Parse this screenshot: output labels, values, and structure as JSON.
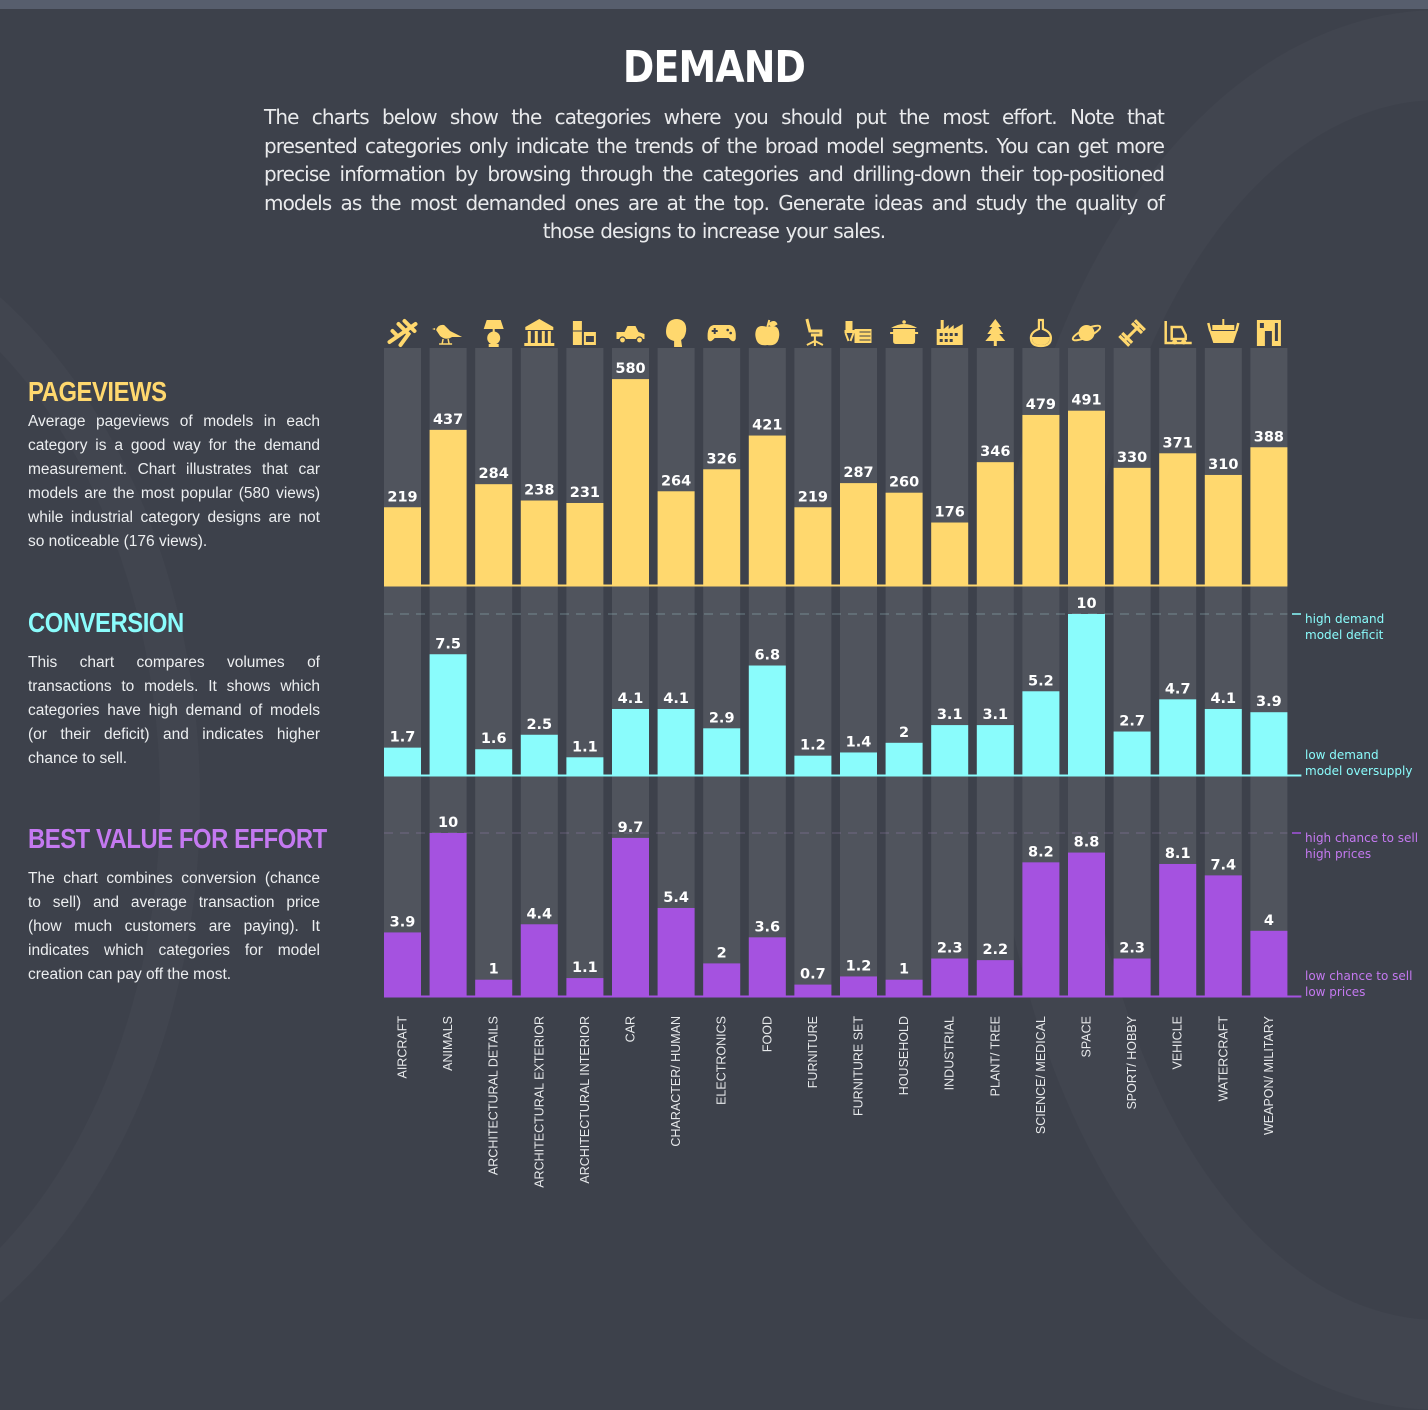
{
  "header": {
    "title": "DEMAND",
    "intro": "The charts below show the categories where you should put the most effort. Note that presented categories only indicate the trends of the broad model segments. You can get more precise information by browsing through the categories and drilling-down their top-positioned models as the most demanded ones are at the top. Generate ideas and study the quality of those designs to increase your sales."
  },
  "sections": {
    "pageviews": {
      "title": "PAGEVIEWS",
      "text": "Average pageviews of models in each category is a good way for the demand measurement. Chart illustrates that car models are the most popular (580 views) while industrial category designs are not so noticeable (176 views)."
    },
    "conversion": {
      "title": "CONVERSION",
      "text": "This chart compares volumes of transactions to models. It shows which categories have high demand of models (or their deficit) and indicates higher chance to sell."
    },
    "value": {
      "title": "BEST VALUE FOR EFFORT",
      "text": "The chart combines conversion (chance to sell) and average transaction price (how much customers are paying). It indicates which categories for model creation can pay off the most."
    }
  },
  "colors": {
    "background": "#3d414b",
    "column": "#50545d",
    "pageviews": "#ffd86e",
    "conversion": "#8afcfc",
    "value": "#a552e0",
    "value_text": "#c479f0"
  },
  "chart_data": [
    {
      "type": "bar",
      "title": "PAGEVIEWS",
      "categories": [
        "AIRCRAFT",
        "ANIMALS",
        "ARCHITECTURAL DETAILS",
        "ARCHITECTURAL EXTERIOR",
        "ARCHITECTURAL INTERIOR",
        "CAR",
        "CHARACTER/ HUMAN",
        "ELECTRONICS",
        "FOOD",
        "FURNITURE",
        "FURNITURE SET",
        "HOUSEHOLD",
        "INDUSTRIAL",
        "PLANT/ TREE",
        "SCIENCE/ MEDICAL",
        "SPACE",
        "SPORT/ HOBBY",
        "VEHICLE",
        "WATERCRAFT",
        "WEAPON/ MILITARY"
      ],
      "values": [
        219,
        437,
        284,
        238,
        231,
        580,
        264,
        326,
        421,
        219,
        287,
        260,
        176,
        346,
        479,
        491,
        330,
        371,
        310,
        388
      ],
      "labels": [
        "219",
        "437",
        "284",
        "238",
        "231",
        "580",
        "264",
        "326",
        "421",
        "219",
        "287",
        "260",
        "176",
        "346",
        "479",
        "491",
        "330",
        "371",
        "310",
        "388"
      ],
      "ylim": [
        0,
        600
      ],
      "xlabel": "",
      "ylabel": "",
      "grid": false
    },
    {
      "type": "bar",
      "title": "CONVERSION",
      "categories": [
        "AIRCRAFT",
        "ANIMALS",
        "ARCHITECTURAL DETAILS",
        "ARCHITECTURAL EXTERIOR",
        "ARCHITECTURAL INTERIOR",
        "CAR",
        "CHARACTER/ HUMAN",
        "ELECTRONICS",
        "FOOD",
        "FURNITURE",
        "FURNITURE SET",
        "HOUSEHOLD",
        "INDUSTRIAL",
        "PLANT/ TREE",
        "SCIENCE/ MEDICAL",
        "SPACE",
        "SPORT/ HOBBY",
        "VEHICLE",
        "WATERCRAFT",
        "WEAPON/ MILITARY"
      ],
      "values": [
        1.7,
        7.5,
        1.6,
        2.5,
        1.1,
        4.1,
        4.1,
        2.9,
        6.8,
        1.2,
        1.4,
        2,
        3.1,
        3.1,
        5.2,
        10,
        2.7,
        4.7,
        4.1,
        3.9
      ],
      "labels": [
        "1.7",
        "7.5",
        "1.6",
        "2.5",
        "1.1",
        "4.1",
        "4.1",
        "2.9",
        "6.8",
        "1.2",
        "1.4",
        "2",
        "3.1",
        "3.1",
        "5.2",
        "10",
        "2.7",
        "4.7",
        "4.1",
        "3.9"
      ],
      "ylim": [
        0,
        10
      ],
      "reference_line": 10,
      "annotations": {
        "top": [
          "high demand",
          "model deficit"
        ],
        "bottom": [
          "low demand",
          "model oversupply"
        ]
      },
      "xlabel": "",
      "ylabel": "",
      "grid": false
    },
    {
      "type": "bar",
      "title": "BEST VALUE FOR EFFORT",
      "categories": [
        "AIRCRAFT",
        "ANIMALS",
        "ARCHITECTURAL DETAILS",
        "ARCHITECTURAL EXTERIOR",
        "ARCHITECTURAL INTERIOR",
        "CAR",
        "CHARACTER/ HUMAN",
        "ELECTRONICS",
        "FOOD",
        "FURNITURE",
        "FURNITURE SET",
        "HOUSEHOLD",
        "INDUSTRIAL",
        "PLANT/ TREE",
        "SCIENCE/ MEDICAL",
        "SPACE",
        "SPORT/ HOBBY",
        "VEHICLE",
        "WATERCRAFT",
        "WEAPON/ MILITARY"
      ],
      "values": [
        3.9,
        10,
        1,
        4.4,
        1.1,
        9.7,
        5.4,
        2,
        3.6,
        0.7,
        1.2,
        1,
        2.3,
        2.2,
        8.2,
        8.8,
        2.3,
        8.1,
        7.4,
        4
      ],
      "labels": [
        "3.9",
        "10",
        "1",
        "4.4",
        "1.1",
        "9.7",
        "5.4",
        "2",
        "3.6",
        "0.7",
        "1.2",
        "1",
        "2.3",
        "2.2",
        "8.2",
        "8.8",
        "2.3",
        "8.1",
        "7.4",
        "4"
      ],
      "ylim": [
        0,
        10
      ],
      "reference_line": 10,
      "annotations": {
        "top": [
          "high chance to sell",
          "high prices"
        ],
        "bottom": [
          "low chance to sell",
          "low prices"
        ]
      },
      "xlabel": "",
      "ylabel": "",
      "grid": false
    }
  ],
  "category_icons": [
    "airplane-icon",
    "bird-icon",
    "lamp-icon",
    "columns-building-icon",
    "fridge-stove-icon",
    "car-icon",
    "human-head-icon",
    "gamepad-icon",
    "apple-icon",
    "office-chair-icon",
    "desk-set-icon",
    "cooking-pot-icon",
    "factory-icon",
    "pine-tree-icon",
    "flask-icon",
    "planet-icon",
    "dumbbell-icon",
    "forklift-icon",
    "viking-ship-icon",
    "weapon-icon"
  ]
}
